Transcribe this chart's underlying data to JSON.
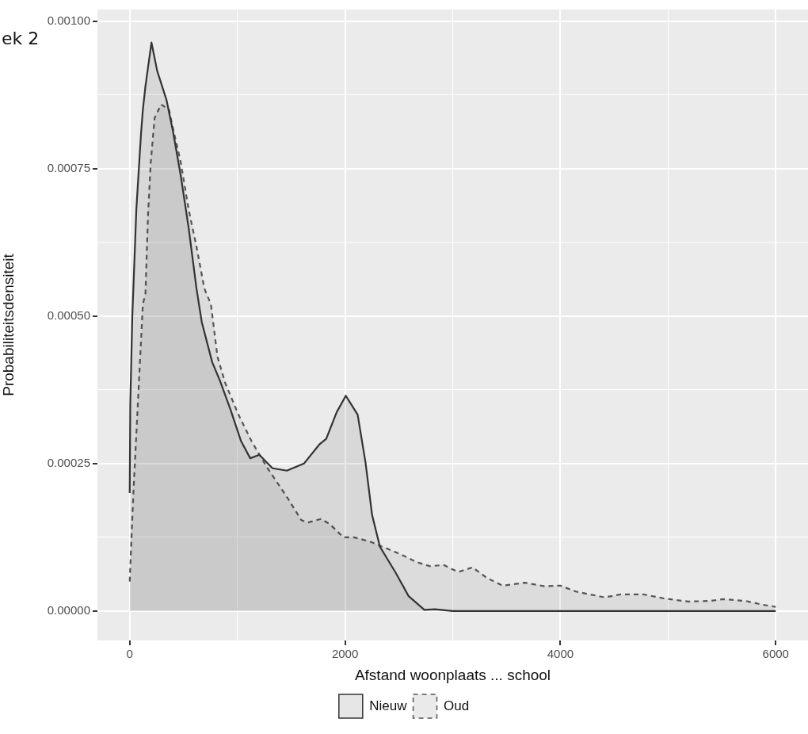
{
  "chart_data": {
    "type": "area",
    "xlabel": "Afstand woonplaats ... school",
    "ylabel": "Probabiliteitsdensiteit",
    "annotations": [
      "ek 2"
    ],
    "xlim": [
      -300,
      6300
    ],
    "xticks": [
      0,
      {
        "value": 1000,
        "label": null
      },
      2000,
      {
        "value": 3000,
        "label": null
      },
      4000,
      {
        "value": 5000,
        "label": null
      },
      6000
    ],
    "ylim": [
      -5e-05,
      0.00102
    ],
    "yticks": [
      {
        "value": 0,
        "label": "0.00000"
      },
      {
        "value": 0.000125,
        "label": null
      },
      {
        "value": 0.00025,
        "label": "0.00025"
      },
      {
        "value": 0.000375,
        "label": null
      },
      {
        "value": 0.0005,
        "label": "0.00050"
      },
      {
        "value": 0.000625,
        "label": null
      },
      {
        "value": 0.00075,
        "label": "0.00075"
      },
      {
        "value": 0.000875,
        "label": null
      },
      {
        "value": 0.001,
        "label": "0.00100"
      }
    ],
    "grid": true,
    "legend": "bottom",
    "marker": "none",
    "series": [
      {
        "name": "Nieuw",
        "color": "#333333",
        "line_style": "solid",
        "x": [
          0,
          5,
          24,
          49,
          61,
          105,
          122,
          146,
          202,
          255,
          341,
          401,
          474,
          547,
          620,
          669,
          766,
          839,
          937,
          1034,
          1119,
          1204,
          1326,
          1460,
          1618,
          1764,
          1825,
          1922,
          2007,
          2117,
          2190,
          2251,
          2324,
          2470,
          2591,
          2737,
          2835,
          3000,
          4000,
          5000,
          6000
        ],
        "values": [
          0.0002,
          0.00035,
          0.0005,
          0.00062,
          0.00068,
          0.00081,
          0.00085,
          0.00089,
          0.000964,
          0.000916,
          0.000867,
          0.000814,
          0.000738,
          0.00065,
          0.000547,
          0.00049,
          0.000422,
          0.00039,
          0.000341,
          0.000288,
          0.000259,
          0.000265,
          0.000242,
          0.000238,
          0.00025,
          0.000283,
          0.000292,
          0.000337,
          0.000365,
          0.000333,
          0.000252,
          0.000163,
          0.000109,
          6.5e-05,
          2.5e-05,
          2e-06,
          3e-06,
          0,
          0,
          0,
          0
        ]
      },
      {
        "name": "Oud",
        "color": "#555555",
        "line_style": "dashed",
        "x": [
          0,
          5,
          36,
          85,
          122,
          146,
          170,
          195,
          231,
          292,
          365,
          401,
          474,
          547,
          620,
          693,
          754,
          815,
          888,
          1010,
          1131,
          1277,
          1472,
          1594,
          1655,
          1776,
          1861,
          1983,
          2080,
          2226,
          2348,
          2518,
          2664,
          2786,
          2916,
          3050,
          3184,
          3318,
          3463,
          3670,
          3852,
          3998,
          4144,
          4411,
          4557,
          4776,
          4970,
          5188,
          5382,
          5516,
          5722,
          5868,
          6000
        ],
        "values": [
          5e-05,
          7.4e-05,
          0.000208,
          0.000386,
          0.00052,
          0.000538,
          0.000672,
          0.00076,
          0.000836,
          0.000859,
          0.00085,
          0.000819,
          0.000761,
          0.000681,
          0.000618,
          0.000547,
          0.00052,
          0.000431,
          0.000386,
          0.000333,
          0.000288,
          0.000243,
          0.00019,
          0.000154,
          0.00015,
          0.000156,
          0.000147,
          0.000125,
          0.000125,
          0.000118,
          0.000109,
          9.6e-05,
          8.3e-05,
          7.6e-05,
          7.8e-05,
          6.6e-05,
          7.4e-05,
          5.6e-05,
          4.3e-05,
          4.8e-05,
          4.2e-05,
          4.3e-05,
          3.3e-05,
          2.3e-05,
          2.8e-05,
          2.8e-05,
          2.1e-05,
          1.6e-05,
          1.7e-05,
          2e-05,
          1.7e-05,
          1.1e-05,
          7e-06
        ]
      }
    ]
  }
}
